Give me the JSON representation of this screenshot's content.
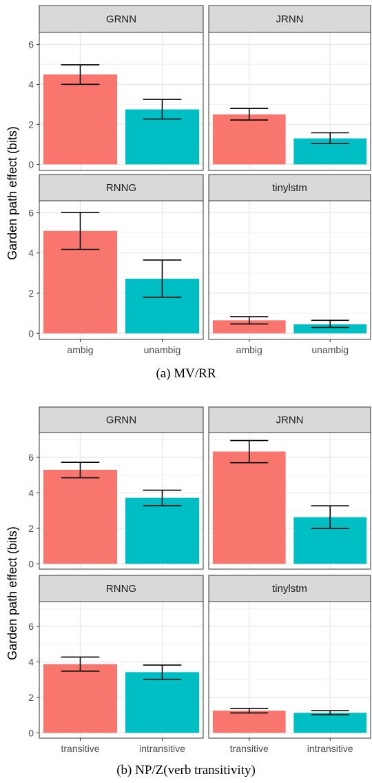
{
  "chart_data": [
    {
      "type": "bar",
      "facet": "grid",
      "caption": "(a)  MV/RR",
      "ylabel": "Garden path effect (bits)",
      "xlabel": "",
      "categories": [
        "ambig",
        "unambig"
      ],
      "ylim": [
        -0.3,
        6.6
      ],
      "yticks": [
        0,
        2,
        4,
        6
      ],
      "grid": true,
      "colors": [
        "#F8766D",
        "#00BFC4"
      ],
      "panels": [
        {
          "title": "GRNN",
          "values": [
            4.5,
            2.75
          ],
          "err_low": [
            4.0,
            2.27
          ],
          "err_high": [
            4.98,
            3.25
          ]
        },
        {
          "title": "JRNN",
          "values": [
            2.5,
            1.3
          ],
          "err_low": [
            2.22,
            1.05
          ],
          "err_high": [
            2.8,
            1.58
          ]
        },
        {
          "title": "RNNG",
          "values": [
            5.1,
            2.72
          ],
          "err_low": [
            4.18,
            1.8
          ],
          "err_high": [
            6.02,
            3.65
          ]
        },
        {
          "title": "tinylstm",
          "values": [
            0.65,
            0.45
          ],
          "err_low": [
            0.47,
            0.3
          ],
          "err_high": [
            0.83,
            0.65
          ]
        }
      ]
    },
    {
      "type": "bar",
      "facet": "grid",
      "caption": "(b)  NP/Z(verb transitivity)",
      "ylabel": "Garden path effect (bits)",
      "xlabel": "",
      "categories": [
        "transitive",
        "intransitive"
      ],
      "ylim": [
        -0.3,
        7.4
      ],
      "yticks": [
        0,
        2,
        4,
        6
      ],
      "grid": true,
      "colors": [
        "#F8766D",
        "#00BFC4"
      ],
      "panels": [
        {
          "title": "GRNN",
          "values": [
            5.3,
            3.72
          ],
          "err_low": [
            4.85,
            3.28
          ],
          "err_high": [
            5.72,
            4.15
          ]
        },
        {
          "title": "JRNN",
          "values": [
            6.33,
            2.63
          ],
          "err_low": [
            5.7,
            2.0
          ],
          "err_high": [
            6.95,
            3.27
          ]
        },
        {
          "title": "RNNG",
          "values": [
            3.87,
            3.42
          ],
          "err_low": [
            3.48,
            3.02
          ],
          "err_high": [
            4.27,
            3.82
          ]
        },
        {
          "title": "tinylstm",
          "values": [
            1.25,
            1.13
          ],
          "err_low": [
            1.12,
            1.02
          ],
          "err_high": [
            1.38,
            1.25
          ]
        }
      ]
    }
  ]
}
